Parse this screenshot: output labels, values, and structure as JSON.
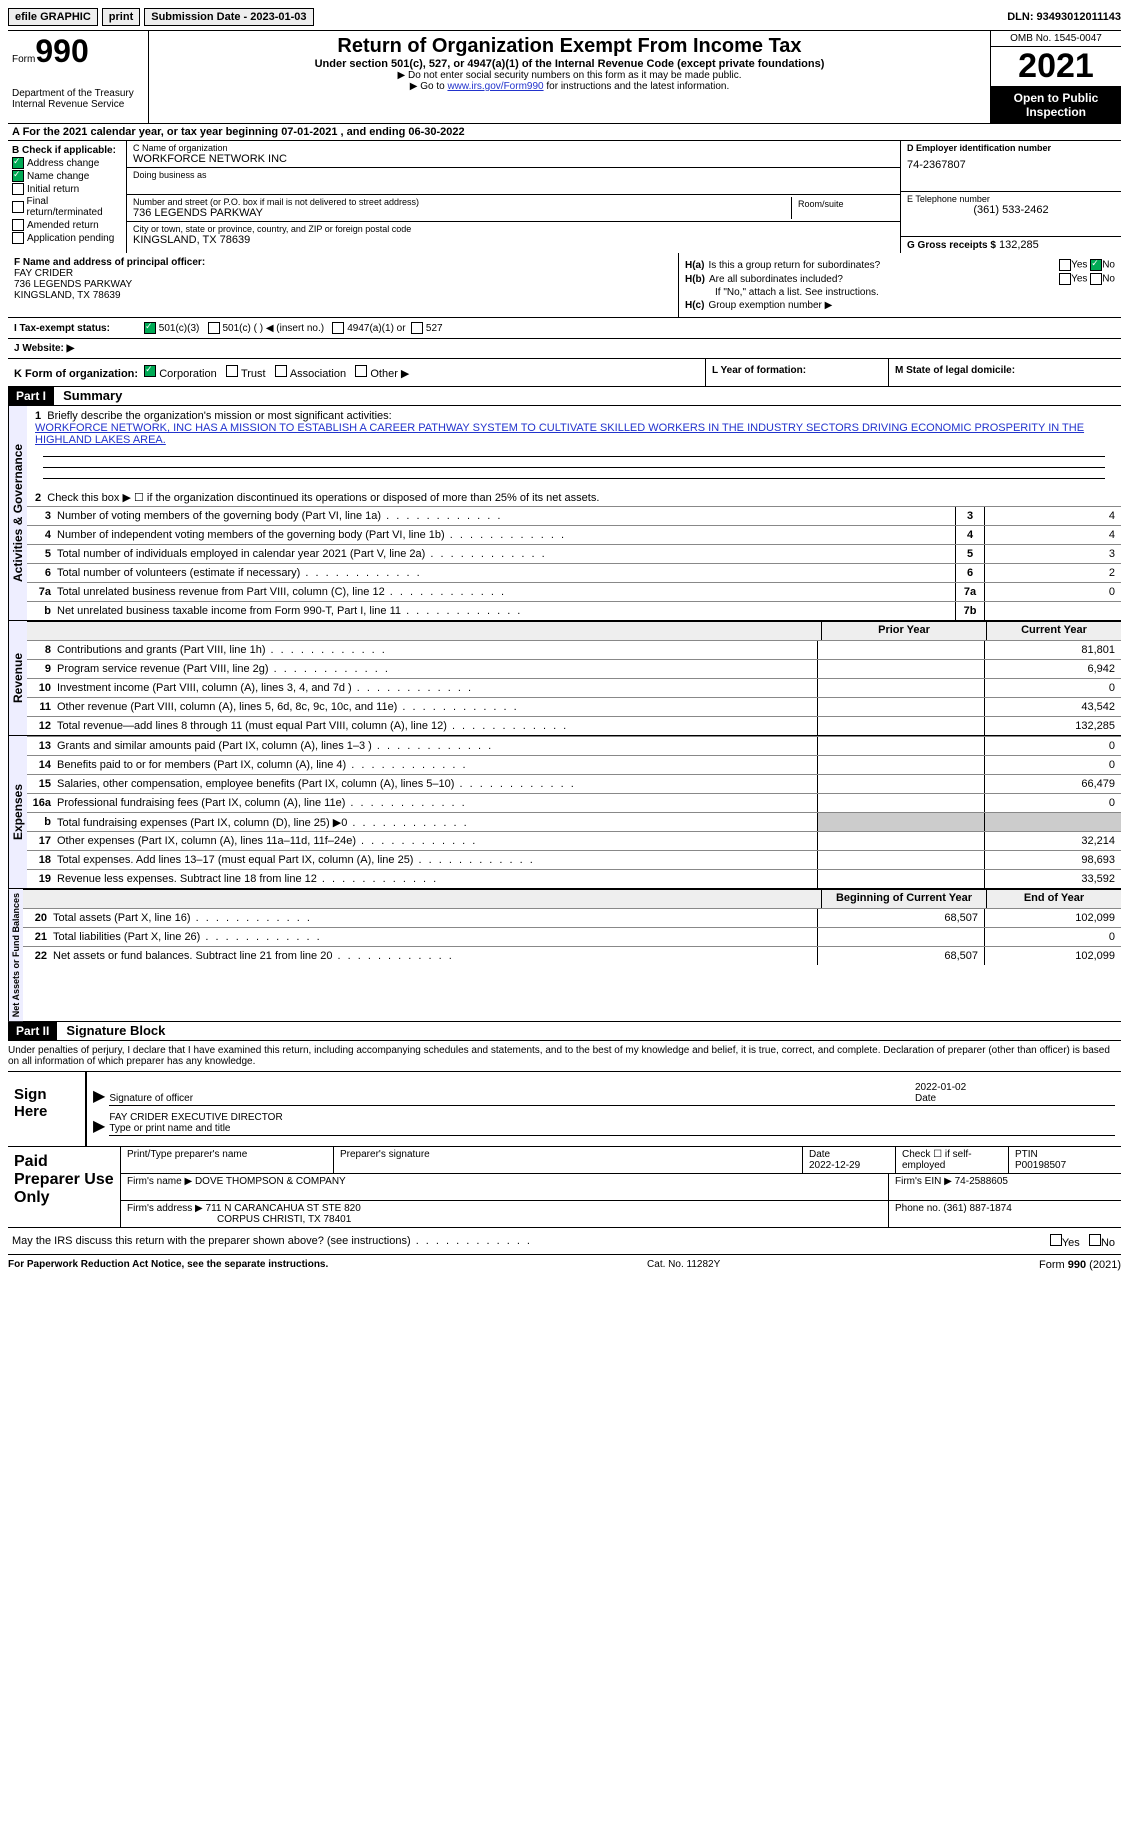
{
  "top": {
    "efile": "efile GRAPHIC",
    "print": "print",
    "submission": "Submission Date - 2023-01-03",
    "dln": "DLN: 93493012011143"
  },
  "header": {
    "form_word": "Form",
    "form_num": "990",
    "dept": "Department of the Treasury",
    "irs": "Internal Revenue Service",
    "title": "Return of Organization Exempt From Income Tax",
    "subtitle": "Under section 501(c), 527, or 4947(a)(1) of the Internal Revenue Code (except private foundations)",
    "note1": "▶ Do not enter social security numbers on this form as it may be made public.",
    "note2_pre": "▶ Go to ",
    "note2_link": "www.irs.gov/Form990",
    "note2_post": " for instructions and the latest information.",
    "omb": "OMB No. 1545-0047",
    "year": "2021",
    "open": "Open to Public Inspection"
  },
  "row_a": "A For the 2021 calendar year, or tax year beginning 07-01-2021   , and ending 06-30-2022",
  "b": {
    "label": "B Check if applicable:",
    "addr": "Address change",
    "name": "Name change",
    "init": "Initial return",
    "final": "Final return/terminated",
    "amend": "Amended return",
    "app": "Application pending"
  },
  "c": {
    "name_label": "C Name of organization",
    "name": "WORKFORCE NETWORK INC",
    "dba_label": "Doing business as",
    "addr_label": "Number and street (or P.O. box if mail is not delivered to street address)",
    "room_label": "Room/suite",
    "addr": "736 LEGENDS PARKWAY",
    "city_label": "City or town, state or province, country, and ZIP or foreign postal code",
    "city": "KINGSLAND, TX  78639"
  },
  "d": {
    "ein_label": "D Employer identification number",
    "ein": "74-2367807",
    "tel_label": "E Telephone number",
    "tel": "(361) 533-2462",
    "gross_label": "G Gross receipts $",
    "gross": "132,285"
  },
  "f": {
    "label": "F  Name and address of principal officer:",
    "name": "FAY CRIDER",
    "addr1": "736 LEGENDS PARKWAY",
    "addr2": "KINGSLAND, TX  78639"
  },
  "h": {
    "a_label": "H(a)",
    "a_text": "Is this a group return for subordinates?",
    "b_label": "H(b)",
    "b_text": "Are all subordinates included?",
    "b_note": "If \"No,\" attach a list. See instructions.",
    "c_label": "H(c)",
    "c_text": "Group exemption number ▶",
    "yes": "Yes",
    "no": "No"
  },
  "i": {
    "label": "I   Tax-exempt status:",
    "o1": "501(c)(3)",
    "o2": "501(c) (  ) ◀ (insert no.)",
    "o3": "4947(a)(1) or",
    "o4": "527"
  },
  "j": {
    "label": "J   Website: ▶"
  },
  "k": {
    "label": "K Form of organization:",
    "corp": "Corporation",
    "trust": "Trust",
    "assoc": "Association",
    "other": "Other ▶",
    "l_label": "L Year of formation:",
    "m_label": "M State of legal domicile:"
  },
  "part1": {
    "header": "Part I",
    "title": "Summary",
    "vert_ag": "Activities & Governance",
    "vert_rev": "Revenue",
    "vert_exp": "Expenses",
    "vert_net": "Net Assets or Fund Balances",
    "q1": "Briefly describe the organization's mission or most significant activities:",
    "mission": "WORKFORCE NETWORK, INC HAS A MISSION TO ESTABLISH A CAREER PATHWAY SYSTEM TO CULTIVATE SKILLED WORKERS IN THE INDUSTRY SECTORS DRIVING ECONOMIC PROSPERITY IN THE HIGHLAND LAKES AREA.",
    "q2": "Check this box ▶ ☐  if the organization discontinued its operations or disposed of more than 25% of its net assets.",
    "lines_ag": [
      {
        "n": "3",
        "desc": "Number of voting members of the governing body (Part VI, line 1a)",
        "box": "3",
        "val": "4"
      },
      {
        "n": "4",
        "desc": "Number of independent voting members of the governing body (Part VI, line 1b)",
        "box": "4",
        "val": "4"
      },
      {
        "n": "5",
        "desc": "Total number of individuals employed in calendar year 2021 (Part V, line 2a)",
        "box": "5",
        "val": "3"
      },
      {
        "n": "6",
        "desc": "Total number of volunteers (estimate if necessary)",
        "box": "6",
        "val": "2"
      },
      {
        "n": "7a",
        "desc": "Total unrelated business revenue from Part VIII, column (C), line 12",
        "box": "7a",
        "val": "0"
      },
      {
        "n": "b",
        "desc": "Net unrelated business taxable income from Form 990-T, Part I, line 11",
        "box": "7b",
        "val": ""
      }
    ],
    "th_prior": "Prior Year",
    "th_curr": "Current Year",
    "lines_rev": [
      {
        "n": "8",
        "desc": "Contributions and grants (Part VIII, line 1h)",
        "curr": "81,801"
      },
      {
        "n": "9",
        "desc": "Program service revenue (Part VIII, line 2g)",
        "curr": "6,942"
      },
      {
        "n": "10",
        "desc": "Investment income (Part VIII, column (A), lines 3, 4, and 7d )",
        "curr": "0"
      },
      {
        "n": "11",
        "desc": "Other revenue (Part VIII, column (A), lines 5, 6d, 8c, 9c, 10c, and 11e)",
        "curr": "43,542"
      },
      {
        "n": "12",
        "desc": "Total revenue—add lines 8 through 11 (must equal Part VIII, column (A), line 12)",
        "curr": "132,285"
      }
    ],
    "lines_exp": [
      {
        "n": "13",
        "desc": "Grants and similar amounts paid (Part IX, column (A), lines 1–3 )",
        "curr": "0"
      },
      {
        "n": "14",
        "desc": "Benefits paid to or for members (Part IX, column (A), line 4)",
        "curr": "0"
      },
      {
        "n": "15",
        "desc": "Salaries, other compensation, employee benefits (Part IX, column (A), lines 5–10)",
        "curr": "66,479"
      },
      {
        "n": "16a",
        "desc": "Professional fundraising fees (Part IX, column (A), line 11e)",
        "curr": "0"
      },
      {
        "n": "b",
        "desc": "Total fundraising expenses (Part IX, column (D), line 25) ▶0",
        "curr": "",
        "shade": true
      },
      {
        "n": "17",
        "desc": "Other expenses (Part IX, column (A), lines 11a–11d, 11f–24e)",
        "curr": "32,214"
      },
      {
        "n": "18",
        "desc": "Total expenses. Add lines 13–17 (must equal Part IX, column (A), line 25)",
        "curr": "98,693"
      },
      {
        "n": "19",
        "desc": "Revenue less expenses. Subtract line 18 from line 12",
        "curr": "33,592"
      }
    ],
    "th_begin": "Beginning of Current Year",
    "th_end": "End of Year",
    "lines_net": [
      {
        "n": "20",
        "desc": "Total assets (Part X, line 16)",
        "prior": "68,507",
        "curr": "102,099"
      },
      {
        "n": "21",
        "desc": "Total liabilities (Part X, line 26)",
        "prior": "",
        "curr": "0"
      },
      {
        "n": "22",
        "desc": "Net assets or fund balances. Subtract line 21 from line 20",
        "prior": "68,507",
        "curr": "102,099"
      }
    ]
  },
  "part2": {
    "header": "Part II",
    "title": "Signature Block",
    "disclaimer": "Under penalties of perjury, I declare that I have examined this return, including accompanying schedules and statements, and to the best of my knowledge and belief, it is true, correct, and complete. Declaration of preparer (other than officer) is based on all information of which preparer has any knowledge.",
    "sign_here": "Sign Here",
    "sig_officer": "Signature of officer",
    "sig_date": "Date",
    "sig_date_val": "2022-01-02",
    "officer_name": "FAY CRIDER  EXECUTIVE DIRECTOR",
    "type_name": "Type or print name and title",
    "paid": "Paid Preparer Use Only",
    "p_name_label": "Print/Type preparer's name",
    "p_sig_label": "Preparer's signature",
    "p_date_label": "Date",
    "p_date": "2022-12-29",
    "p_check_label": "Check ☐ if self-employed",
    "ptin_label": "PTIN",
    "ptin": "P00198507",
    "firm_name_label": "Firm's name     ▶",
    "firm_name": "DOVE THOMPSON & COMPANY",
    "firm_ein_label": "Firm's EIN ▶",
    "firm_ein": "74-2588605",
    "firm_addr_label": "Firm's address ▶",
    "firm_addr1": "711 N CARANCAHUA ST STE 820",
    "firm_addr2": "CORPUS CHRISTI, TX  78401",
    "phone_label": "Phone no.",
    "phone": "(361) 887-1874",
    "irs_discuss": "May the IRS discuss this return with the preparer shown above? (see instructions)"
  },
  "footer": {
    "pra": "For Paperwork Reduction Act Notice, see the separate instructions.",
    "cat": "Cat. No. 11282Y",
    "form": "Form 990 (2021)"
  }
}
